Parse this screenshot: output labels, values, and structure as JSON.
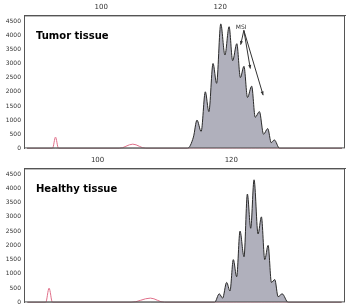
{
  "chart_data": [
    {
      "type": "line",
      "title": "Tumor tissue",
      "annotation": "MSI",
      "x": [
        87.5,
        91.8,
        92.3,
        92.8,
        103,
        105.3,
        107.5,
        114.5,
        115.5,
        116.1,
        116.8,
        117.5,
        118.1,
        118.8,
        119.4,
        120.1,
        120.8,
        121.5,
        122.1,
        122.8,
        123.4,
        124.0,
        124.6,
        125.3,
        125.9,
        126.6,
        127.3,
        128.0,
        128.6,
        129.1,
        130,
        140.5
      ],
      "series": [
        {
          "type": "area",
          "color": "#2b2b2b",
          "values": [
            0,
            0,
            0,
            0,
            0,
            0,
            0,
            0,
            400,
            1000,
            600,
            2000,
            1300,
            3000,
            2300,
            4400,
            3300,
            4300,
            3100,
            3700,
            2500,
            2900,
            1800,
            2200,
            1100,
            1300,
            500,
            700,
            200,
            300,
            0,
            0
          ]
        },
        {
          "type": "line",
          "color": "#e0708a",
          "values": [
            0,
            0,
            400,
            0,
            0,
            150,
            0,
            0,
            0,
            0,
            0,
            0,
            0,
            0,
            0,
            0,
            0,
            0,
            0,
            0,
            0,
            0,
            0,
            0,
            0,
            0,
            0,
            0,
            0,
            0,
            0,
            0
          ]
        }
      ],
      "xlim": [
        87,
        141
      ],
      "xticks": [
        100,
        120
      ],
      "ylim": [
        0,
        4700
      ],
      "yticks": [
        0,
        500,
        1000,
        1500,
        2000,
        2500,
        3000,
        3500,
        4000,
        4500
      ],
      "grid": false
    },
    {
      "type": "line",
      "title": "Healthy tissue",
      "x": [
        89.5,
        92.25,
        92.75,
        93.25,
        105,
        107.9,
        110,
        117.5,
        118.2,
        118.7,
        119.3,
        119.8,
        120.3,
        120.8,
        121.3,
        121.9,
        122.4,
        122.9,
        123.4,
        124.0,
        124.5,
        125.0,
        125.5,
        126.0,
        126.5,
        127.0,
        127.6,
        128.5,
        136.5
      ],
      "series": [
        {
          "type": "area",
          "color": "#2b2b2b",
          "values": [
            0,
            0,
            0,
            0,
            0,
            0,
            0,
            0,
            300,
            150,
            700,
            400,
            1500,
            900,
            2500,
            1600,
            3800,
            2600,
            4300,
            2400,
            3000,
            1500,
            2000,
            700,
            800,
            200,
            300,
            0,
            0
          ]
        },
        {
          "type": "line",
          "color": "#e0708a",
          "values": [
            0,
            0,
            500,
            0,
            0,
            150,
            0,
            0,
            0,
            0,
            0,
            0,
            0,
            0,
            0,
            0,
            0,
            0,
            0,
            0,
            0,
            0,
            0,
            0,
            0,
            0,
            0,
            0,
            0
          ]
        }
      ],
      "xlim": [
        89,
        137
      ],
      "xticks": [
        100,
        120
      ],
      "ylim": [
        0,
        4700
      ],
      "yticks": [
        0,
        500,
        1000,
        1500,
        2000,
        2500,
        3000,
        3500,
        4000,
        4500
      ],
      "grid": false
    }
  ]
}
